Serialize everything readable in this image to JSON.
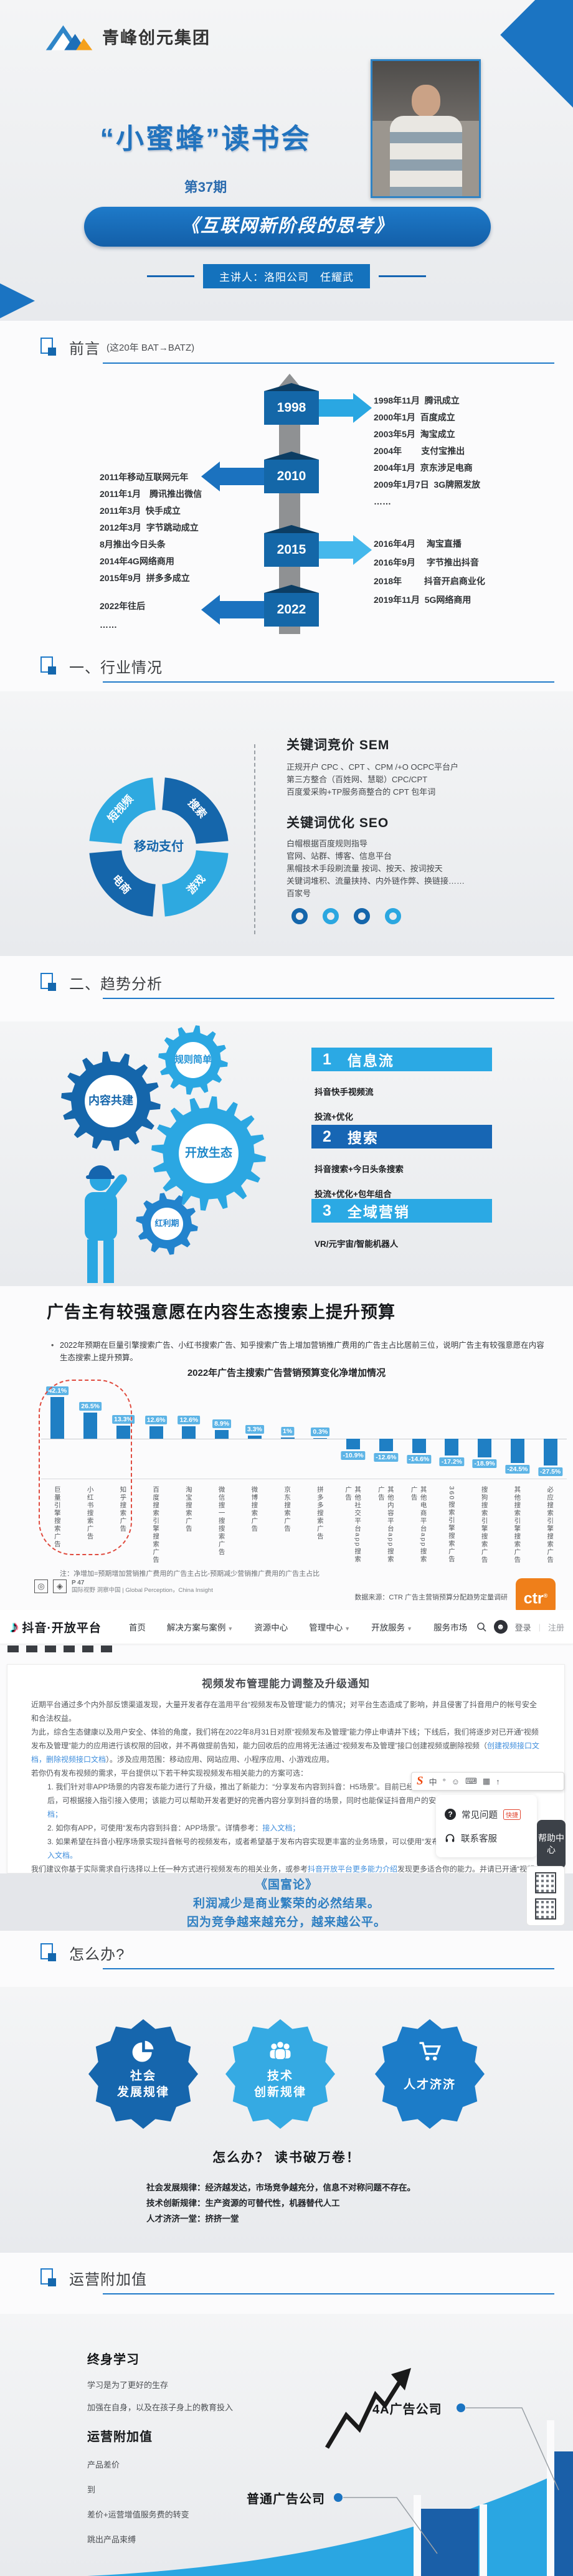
{
  "header": {
    "company": "青峰创元集团",
    "club": "“小蜜蜂”读书会",
    "issue": "第37期",
    "book": "《互联网新阶段的思考》",
    "presenter": "主讲人：洛阳公司　任耀武"
  },
  "preface": {
    "title": "前言",
    "note": "(这20年  BAT→BATZ)",
    "timeline": [
      {
        "year": "1998",
        "items": [
          "1998年11月  腾讯成立",
          "2000年1月  百度成立",
          "2003年5月  淘宝成立",
          "2004年        支付宝推出",
          "2004年1月  京东涉足电商",
          "2009年1月7日  3G牌照发放",
          "……"
        ]
      },
      {
        "year": "2010",
        "items": [
          "2011年移动互联网元年",
          "2011年1月　腾讯推出微信",
          "2011年3月  快手成立",
          "2012年3月  字节跳动成立",
          "8月推出今日头条",
          "2014年4G网络商用",
          "2015年9月  拼多多成立"
        ]
      },
      {
        "year": "2015",
        "items": [
          "2016年4月　 淘宝直播",
          "2016年9月　 字节推出抖音",
          "2018年　　  抖音开启商业化",
          "2019年11月  5G网络商用"
        ]
      },
      {
        "year": "2022",
        "items": [
          "2022年往后",
          "……"
        ]
      }
    ]
  },
  "industry": {
    "title": "一、行业情况",
    "donut": {
      "center": "移动支付",
      "segments": [
        {
          "label": "短视频",
          "color": "#2ea9e0"
        },
        {
          "label": "搜索",
          "color": "#1566ab"
        },
        {
          "label": "游戏",
          "color": "#2ea9e0"
        },
        {
          "label": "电商",
          "color": "#1566ab"
        }
      ]
    },
    "sem": {
      "heading": "关键词竞价 SEM",
      "lines": [
        "正规开户 CPC 、CPT 、CPM  /+O OCPC平台户",
        "第三方整合（百姓网、慧聪）CPC/CPT",
        "百度爱采购+TP服务商整合的 CPT 包年词"
      ]
    },
    "seo": {
      "heading": "关键词优化 SEO",
      "lines": [
        "白帽根据百度规则指导",
        "官网、站群、博客、信息平台",
        "黑帽技术手段刷流量  按词、按天、按词按天",
        "关键词堆积、流量挟持、内外链作弊、换链接……",
        "百家号"
      ]
    }
  },
  "trends": {
    "title": "二、趋势分析",
    "gears": [
      "规则简单",
      "内容共建",
      "开放生态",
      "红利期"
    ],
    "items": [
      {
        "num": "1",
        "label": "信息流",
        "lines": [
          "抖音快手视频流",
          "投流+优化"
        ]
      },
      {
        "num": "2",
        "label": "搜索",
        "lines": [
          "抖音搜索+今日头条搜索",
          "投流+优化+包年组合"
        ]
      },
      {
        "num": "3",
        "label": "全域营销",
        "lines": [
          "VR/元宇宙/智能机器人"
        ]
      }
    ]
  },
  "ad_budget": {
    "heading": "广告主有较强意愿在内容生态搜索上提升预算",
    "bullet": "2022年预期在巨量引擎搜索广告、小红书搜索广告、知乎搜索广告上增加营销推广费用的广告主占比居前三位，说明广告主有较强意愿在内容生态搜索上提升预算。",
    "note": "注：净增加=预期增加营销推广费用的广告主占比-预期减少营销推广费用的广告主占比",
    "source_page": "P 47",
    "source_left": "国际视野 洞察中国 | Global Perception，China Insight",
    "source_right": "数据来源：CTR 广告主营销预算分配趋势定量调研",
    "ctr_logo": "ctr"
  },
  "chart_data": {
    "type": "bar",
    "title": "2022年广告主搜索广告营销预算变化净增加情况",
    "categories": [
      "巨量引擎搜索广告",
      "小红书搜索广告",
      "知乎搜索广告",
      "百度搜索引擎搜索广告",
      "淘宝搜索广告",
      "微信搜一搜搜索广告",
      "微博搜索广告",
      "京东搜索广告",
      "拼多多搜索广告",
      "其他社交平台app搜索广告",
      "其他内容平台app搜索广告",
      "其他电商平台app搜索广告",
      "360搜索引擎搜索广告",
      "搜狗搜索引擎搜索广告",
      "其他搜索引擎搜索广告",
      "必应搜索引擎搜索广告"
    ],
    "values": [
      42.1,
      26.5,
      13.3,
      12.6,
      12.6,
      8.9,
      3.3,
      1.0,
      0.3,
      -10.9,
      -12.6,
      -14.6,
      -17.2,
      -18.9,
      -24.5,
      -27.5
    ],
    "xlabel": "",
    "ylabel": "净增加占比",
    "ylim": [
      -30,
      45
    ],
    "bar_color": "#1f7fc4",
    "label_bg": "#5db4e6",
    "highlight": "前三位用红色虚线圈出",
    "legend_position": "none",
    "grid": false
  },
  "douyin": {
    "brand": "抖音·开放平台",
    "nav": [
      {
        "label": "首页",
        "caret": false
      },
      {
        "label": "解决方案与案例",
        "caret": true
      },
      {
        "label": "资源中心",
        "caret": false
      },
      {
        "label": "管理中心",
        "caret": true
      },
      {
        "label": "开放服务",
        "caret": true
      },
      {
        "label": "服务市场",
        "caret": false
      }
    ],
    "login": "登录",
    "register": "注册",
    "notice_title": "视频发布管理能力调整及升级通知",
    "paragraphs": [
      {
        "kind": "p",
        "segs": [
          {
            "t": "近期平台通过多个内外部反馈渠道发现，大量开发者存在滥用平台“视频发布及管理”能力的情况；对平台生态造成了影响，并且侵害了抖音用户的帐号安全和合法权益。"
          }
        ]
      },
      {
        "kind": "p",
        "segs": [
          {
            "t": "为此，综合生态健康以及用户安全、体验的角度，我们将在2022年8月31日对原“视频发布及管理”能力停止申请并下线；下线后，我们将逐步对已开通“视频发布及管理”能力的应用进行该权限的回收，并不再做提前告知，能力回收后的应用将无法通过“视频发布及管理”接口创建视频或删除视频（"
          },
          {
            "t": "创建视频接口文档，删除视频接口文档",
            "link": true
          },
          {
            "t": "）。涉及应用范围：移动应用、网站应用、小程序应用、小游戏应用。"
          }
        ]
      },
      {
        "kind": "p",
        "segs": [
          {
            "t": "若你仍有发布视频的需求，平台提供以下若干种实现视频发布相关能力的方案可选："
          }
        ]
      },
      {
        "kind": "li",
        "segs": [
          {
            "t": "1. 我们针对非APP场景的内容发布能力进行了升级，推出了新能力：“分享发布内容到抖音：H5场景”。目前已经支持开发者应用自助申请，申请通过后，可根据接入指引接入使用；该能力可以帮助开发者更好的完善内容分享到抖音的场景，同时也能保证抖音用户的安全及权益。详情参考："
          },
          {
            "t": "接入文档；",
            "link": true
          }
        ]
      },
      {
        "kind": "li",
        "segs": [
          {
            "t": "2. 如你有APP，可使用“发布内容到抖音：APP场景”。详情参考："
          },
          {
            "t": "接入文档；",
            "link": true
          }
        ]
      },
      {
        "kind": "li",
        "segs": [
          {
            "t": "3. 如果希望在抖音小程序场景实现抖音帐号的视频发布，或者希望基于发布内容实现更丰富的业务场景，可以使用“发布抖音视频”能力，详情参考："
          },
          {
            "t": "接入文档。",
            "link": true
          }
        ]
      },
      {
        "kind": "p",
        "segs": [
          {
            "t": "我们建议你基于实际需求自行选择以上任一种方式进行视频发布的相关业务，或参考"
          },
          {
            "t": "抖音开放平台更多能力介绍",
            "link": true
          },
          {
            "t": "发现更多适合你的能力。并请已开通“视频发布及管理”能力的开发者应用尽快调整相关接口或进行适配，避免造成较大影响。感谢各位开发者的理解。"
          }
        ]
      }
    ],
    "overlays": {
      "ime": [
        "中",
        "°",
        "☺",
        "⌨",
        "▦",
        "↑"
      ],
      "faq": "常见问题",
      "faq_tag": "快捷",
      "contact": "联系客服",
      "help": "帮助中心"
    }
  },
  "quote": {
    "title": "《国富论》",
    "lines": [
      "利润减少是商业繁荣的必然结果。",
      "因为竞争越来越充分，越来越公平。"
    ]
  },
  "how": {
    "title": "怎么办?",
    "badges": [
      {
        "line1": "社会",
        "line2": "发展规律",
        "color": "#1666ad",
        "icon": "pie-chart-icon"
      },
      {
        "line1": "技术",
        "line2": "创新规律",
        "color": "#35aae3",
        "icon": "team-icon"
      },
      {
        "line1": "人才济济",
        "line2": "",
        "color": "#1c7cc8",
        "icon": "cart-icon"
      }
    ],
    "slogan": "怎么办？ 读书破万卷！",
    "lines": [
      "社会发展规律：经济越发达，市场竞争越充分，信息不对称问题不存在。",
      "技术创新规律：生产资源的可替代性，机器替代人工",
      "人才济济一堂：挤挤一堂"
    ]
  },
  "value": {
    "title": "运营附加值",
    "blocks": [
      {
        "heading": "终身学习",
        "lines": [
          "学习是为了更好的生存",
          "加强在自身，以及在孩子身上的教育投入"
        ]
      },
      {
        "heading": "运营附加值",
        "lines": [
          "产品差价",
          "到",
          "差价+运营增值服务费的转变",
          "跳出产品束缚"
        ]
      }
    ],
    "callouts": [
      "4A广告公司",
      "普通广告公司"
    ]
  }
}
